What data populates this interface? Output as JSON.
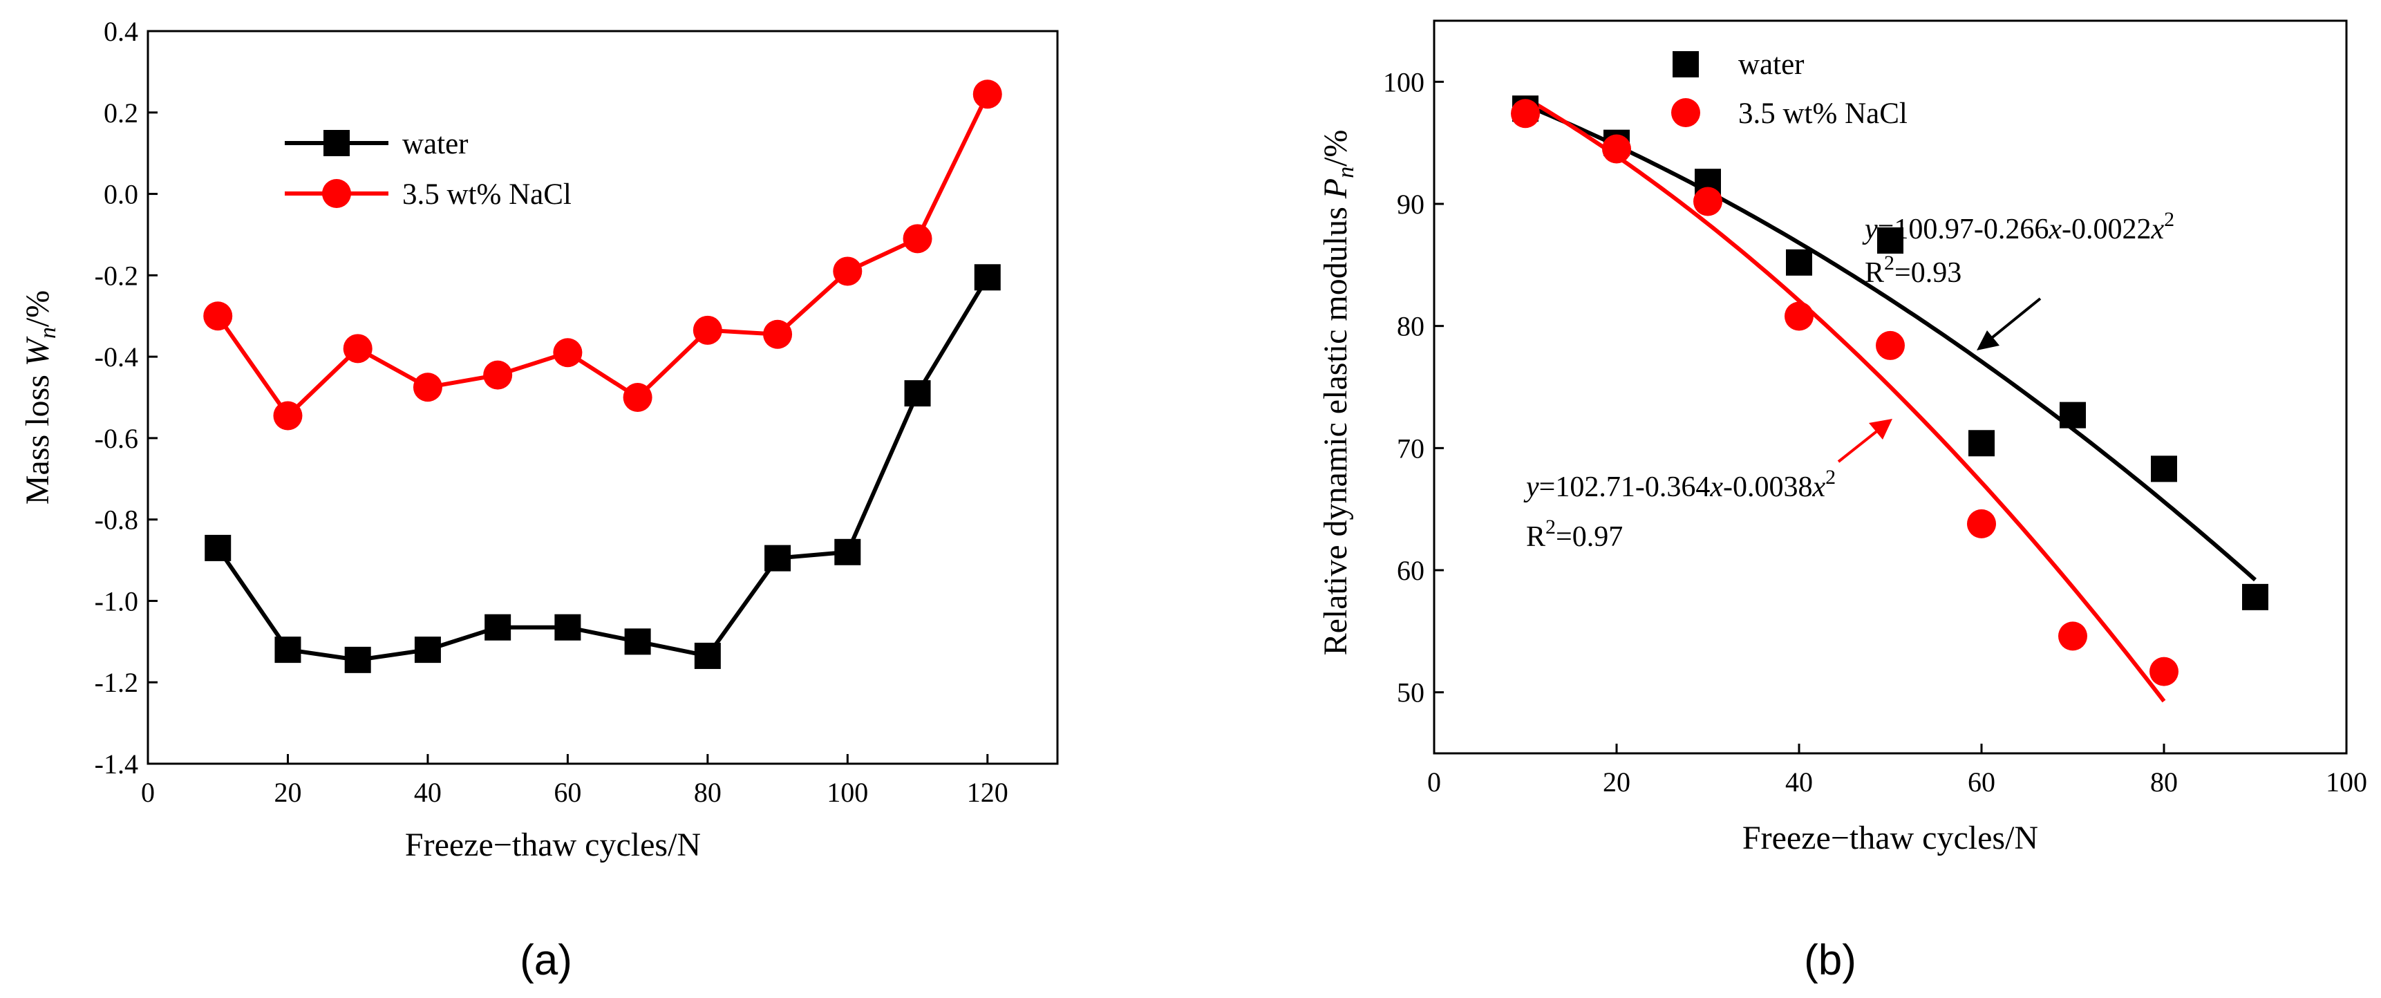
{
  "chart_data": [
    {
      "type": "line",
      "panel_label": "(a)",
      "xlabel": "Freeze−thaw cycles/N",
      "ylabel_parts": [
        "Mass loss ",
        "W",
        "n",
        "/%"
      ],
      "xlim": [
        0,
        130
      ],
      "ylim": [
        -1.4,
        0.4
      ],
      "xticks": [
        0,
        20,
        40,
        60,
        80,
        100,
        120
      ],
      "xtick_labels": [
        "0",
        "20",
        "40",
        "60",
        "80",
        "100",
        "120"
      ],
      "yticks": [
        -1.4,
        -1.2,
        -1.0,
        -0.8,
        -0.6,
        -0.4,
        -0.2,
        0.0,
        0.2,
        0.4
      ],
      "ytick_labels": [
        "-1.4",
        "-1.2",
        "-1.0",
        "-0.8",
        "-0.6",
        "-0.4",
        "-0.2",
        "0.0",
        "0.2",
        "0.4"
      ],
      "legend_position": "upper-left",
      "x": [
        10,
        20,
        30,
        40,
        50,
        60,
        70,
        80,
        90,
        100,
        110,
        120
      ],
      "series": [
        {
          "name": "water",
          "color": "#000000",
          "marker": "square",
          "values": [
            -0.87,
            -1.12,
            -1.145,
            -1.12,
            -1.065,
            -1.065,
            -1.1,
            -1.135,
            -0.895,
            -0.88,
            -0.49,
            -0.205
          ]
        },
        {
          "name": "3.5 wt% NaCl",
          "color": "#ff0000",
          "marker": "circle",
          "values": [
            -0.3,
            -0.545,
            -0.38,
            -0.475,
            -0.445,
            -0.39,
            -0.5,
            -0.335,
            -0.345,
            -0.19,
            -0.11,
            0.245
          ]
        }
      ]
    },
    {
      "type": "scatter",
      "panel_label": "(b)",
      "xlabel": "Freeze−thaw cycles/N",
      "ylabel_parts": [
        "Relative dynamic elastic modulus ",
        "P",
        "n",
        "/%"
      ],
      "xlim": [
        0,
        100
      ],
      "ylim": [
        45,
        105
      ],
      "xticks": [
        0,
        20,
        40,
        60,
        80,
        100
      ],
      "xtick_labels": [
        "0",
        "20",
        "40",
        "60",
        "80",
        "100"
      ],
      "yticks": [
        50,
        60,
        70,
        80,
        90,
        100
      ],
      "ytick_labels": [
        "50",
        "60",
        "70",
        "80",
        "90",
        "100"
      ],
      "legend_position": "top-left",
      "series": [
        {
          "name": "water",
          "color": "#000000",
          "marker": "square",
          "x": [
            10,
            20,
            30,
            40,
            50,
            60,
            70,
            80,
            90
          ],
          "values": [
            97.8,
            95.0,
            91.8,
            85.2,
            87.0,
            70.4,
            72.7,
            68.3,
            57.8
          ],
          "fit": {
            "a": 100.97,
            "b": -0.266,
            "c": -0.0022,
            "x_range": [
              10,
              90
            ]
          },
          "equation_parts": [
            "y",
            "=100.97-0.266",
            "x",
            "-0.0022",
            "x",
            "2"
          ],
          "r2_parts": [
            "R",
            "2",
            "=0.93"
          ]
        },
        {
          "name": "3.5 wt% NaCl",
          "color": "#ff0000",
          "marker": "circle",
          "x": [
            10,
            20,
            30,
            40,
            50,
            60,
            70,
            80
          ],
          "values": [
            97.4,
            94.5,
            90.2,
            80.8,
            78.4,
            63.8,
            54.6,
            51.7
          ],
          "fit": {
            "a": 102.71,
            "b": -0.364,
            "c": -0.0038,
            "x_range": [
              10,
              80
            ]
          },
          "equation_parts": [
            "y",
            "=102.71-0.364",
            "x",
            "-0.0038",
            "x",
            "2"
          ],
          "r2_parts": [
            "R",
            "2",
            "=0.97"
          ]
        }
      ]
    }
  ]
}
